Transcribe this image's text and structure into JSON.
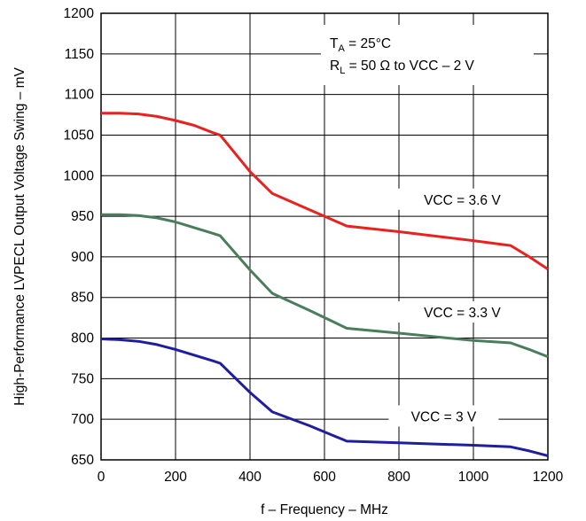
{
  "chart_data": {
    "type": "line",
    "xlabel": "f – Frequency – MHz",
    "ylabel": "High-Performance LVPECL Output Voltage Swing – mV",
    "xlim": [
      0,
      1200
    ],
    "ylim": [
      650,
      1200
    ],
    "xticks": [
      0,
      200,
      400,
      600,
      800,
      1000,
      1200
    ],
    "yticks": [
      650,
      700,
      750,
      800,
      850,
      900,
      950,
      1000,
      1050,
      1100,
      1150,
      1200
    ],
    "grid": true,
    "conditions": {
      "ta": {
        "main": "T",
        "sub": "A",
        "rest": " = 25°C"
      },
      "rl": {
        "main": "R",
        "sub": "L",
        "rest": " = 50 Ω to VCC – 2 V"
      }
    },
    "figure_id": "G003",
    "series": [
      {
        "name": "VCC = 3.6 V",
        "color": "#e8221f",
        "x": [
          0,
          50,
          100,
          150,
          200,
          250,
          300,
          320,
          400,
          460,
          560,
          660,
          800,
          1000,
          1100,
          1150,
          1200
        ],
        "y": [
          1077,
          1077,
          1076,
          1073,
          1068,
          1062,
          1053,
          1050,
          1005,
          978,
          958,
          938,
          931,
          920,
          914,
          900,
          885
        ]
      },
      {
        "name": "VCC = 3.3 V",
        "color": "#4a7d5c",
        "x": [
          0,
          50,
          100,
          150,
          200,
          250,
          300,
          320,
          400,
          460,
          560,
          660,
          800,
          1000,
          1100,
          1150,
          1200
        ],
        "y": [
          952,
          952,
          951,
          948,
          943,
          936,
          929,
          926,
          884,
          855,
          834,
          812,
          806,
          797,
          794,
          786,
          777
        ]
      },
      {
        "name": "VCC = 3 V",
        "color": "#1f1f9e",
        "x": [
          0,
          50,
          100,
          150,
          200,
          250,
          300,
          320,
          400,
          460,
          560,
          660,
          800,
          1000,
          1100,
          1150,
          1200
        ],
        "y": [
          799,
          798,
          796,
          792,
          786,
          779,
          772,
          769,
          733,
          709,
          692,
          673,
          671,
          668,
          666,
          661,
          655
        ]
      }
    ]
  }
}
